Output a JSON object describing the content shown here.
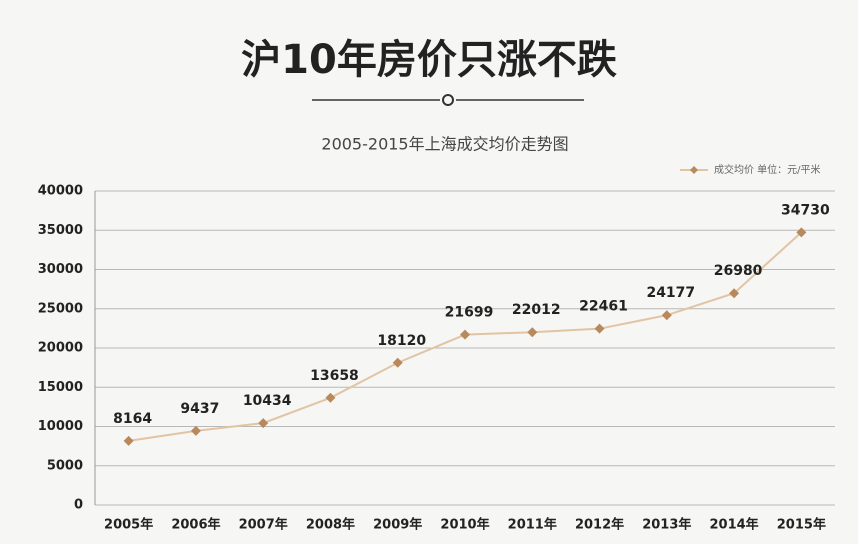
{
  "chart_data": {
    "type": "line",
    "title": "沪10年房价只涨不跌",
    "subtitle": "2005-2015年上海成交均价走势图",
    "categories": [
      "2005年",
      "2006年",
      "2007年",
      "2008年",
      "2009年",
      "2010年",
      "2011年",
      "2012年",
      "2013年",
      "2014年",
      "2015年"
    ],
    "series": [
      {
        "name": "成交均价 单位：元/平米",
        "color": "#b8895c",
        "values": [
          8164,
          9437,
          10434,
          13658,
          18120,
          21699,
          22012,
          22461,
          24177,
          26980,
          34730
        ]
      }
    ],
    "ylim": [
      0,
      40000
    ],
    "yticks": [
      0,
      5000,
      10000,
      15000,
      20000,
      25000,
      30000,
      35000,
      40000
    ],
    "grid": true,
    "legend": "top-right"
  }
}
